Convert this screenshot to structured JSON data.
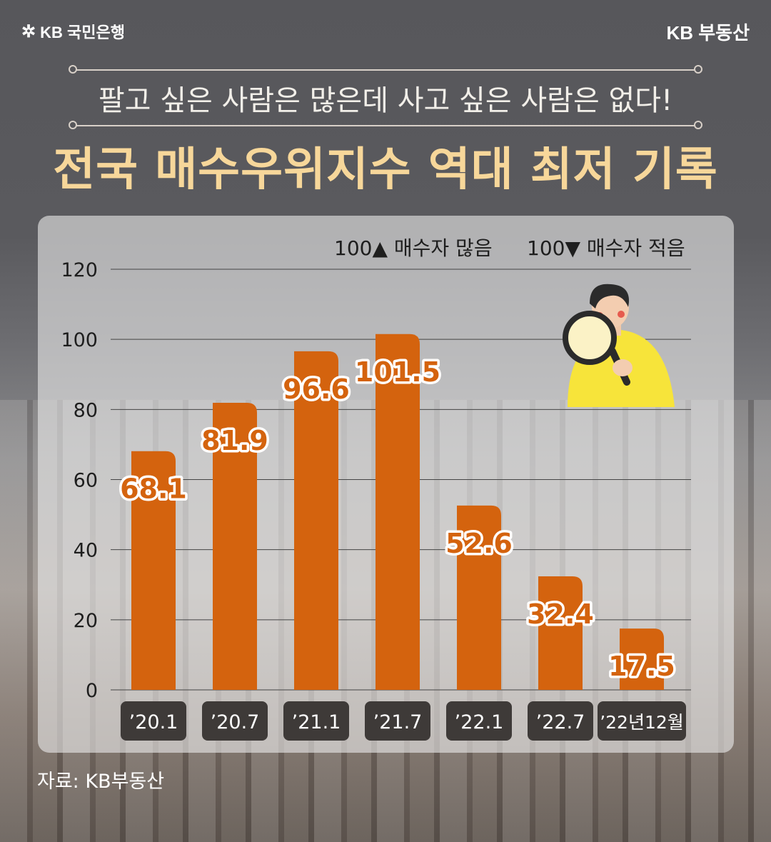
{
  "brand": {
    "bank_logo": "KB 국민은행",
    "bank_icon": "star-logo-icon",
    "corner_label": "KB 부동산"
  },
  "header": {
    "subtitle": "팔고 싶은 사람은 많은데 사고 싶은 사람은 없다!",
    "title": "전국 매수우위지수 역대 최저 기록"
  },
  "legend": {
    "above": "100▲ 매수자 많음",
    "below": "100▼ 매수자 적음"
  },
  "source": "자료: KB부동산",
  "colors": {
    "bar": "#d4630e",
    "title": "#f7d79a",
    "category_pill": "#3e3a38",
    "label_outline": "#ffffff"
  },
  "chart_data": {
    "type": "bar",
    "categories": [
      "’20.1",
      "’20.7",
      "’21.1",
      "’21.7",
      "’22.1",
      "’22.7",
      "’22년12월"
    ],
    "values": [
      68.1,
      81.9,
      96.6,
      101.5,
      52.6,
      32.4,
      17.5
    ],
    "labels": [
      "68.1",
      "81.9",
      "96.6",
      "101.5",
      "52.6",
      "32.4",
      "17.5"
    ],
    "yticks": [
      "0",
      "20",
      "40",
      "60",
      "80",
      "100",
      "120"
    ],
    "ylim": [
      0,
      120
    ],
    "grid": true
  }
}
